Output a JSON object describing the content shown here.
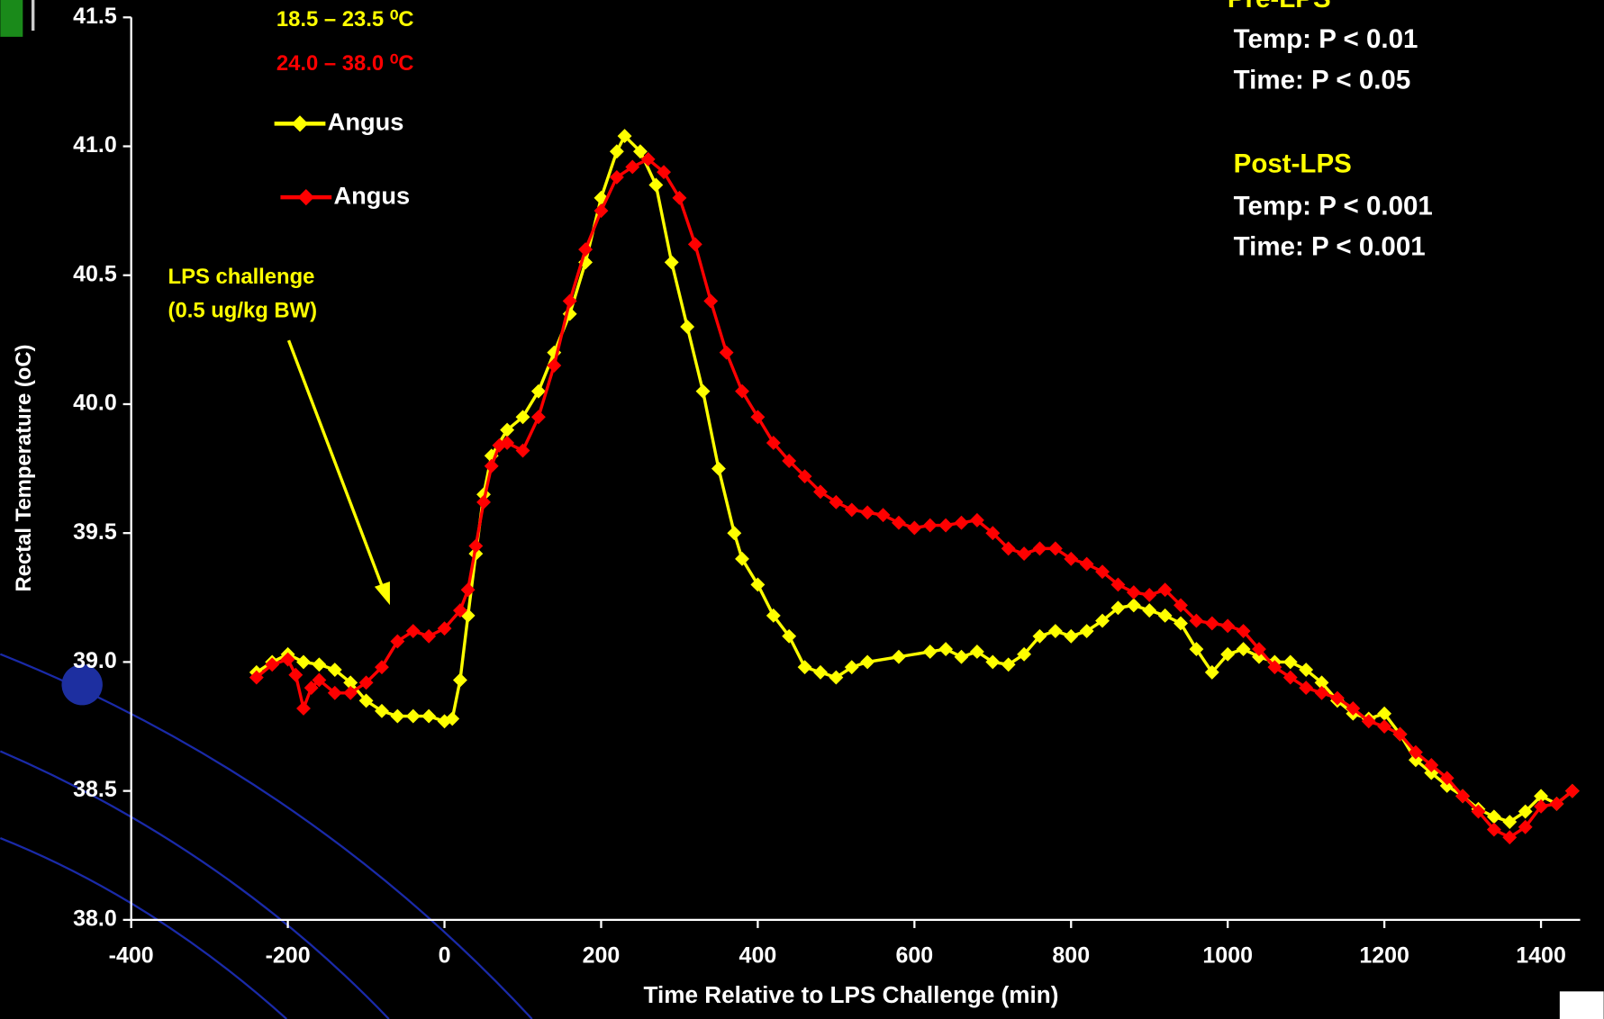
{
  "chart_data": {
    "type": "line",
    "x_label": "Time Relative to LPS Challenge (min)",
    "y_label": "Rectal Temperature (oC)",
    "xlim": [
      -400,
      1450
    ],
    "ylim": [
      38.0,
      41.5
    ],
    "xticks": [
      -400,
      -200,
      0,
      200,
      400,
      600,
      800,
      1000,
      1200,
      1400
    ],
    "yticks": [
      {
        "value": 38,
        "label": "38.0"
      },
      38.5,
      {
        "value": 39,
        "label": "39.0"
      },
      39.5,
      {
        "value": 40,
        "label": "40.0"
      },
      40.5,
      {
        "value": 41,
        "label": "41.0"
      },
      41.5
    ],
    "legend_ranges": [
      {
        "text": "18.5 – 23.5 ⁰C",
        "color": "#ffff00"
      },
      {
        "text": "24.0 – 38.0 ⁰C",
        "color": "#ff0000"
      }
    ],
    "annotations": {
      "arrow_label": [
        "LPS challenge",
        "(0.5 ug/kg BW)"
      ],
      "pre_title": "Pre-LPS",
      "pre_lines": [
        "Temp: P < 0.01",
        "Time: P < 0.05"
      ],
      "post_title": "Post-LPS",
      "post_lines": [
        "Temp: P < 0.001",
        "Time: P < 0.001"
      ]
    },
    "series": [
      {
        "name": "Angus",
        "color": "#ffff00",
        "x": [
          -240,
          -220,
          -200,
          -180,
          -160,
          -140,
          -120,
          -100,
          -80,
          -60,
          -40,
          -20,
          0,
          10,
          20,
          30,
          40,
          50,
          60,
          80,
          100,
          120,
          140,
          160,
          180,
          200,
          220,
          230,
          250,
          270,
          290,
          310,
          330,
          350,
          370,
          380,
          400,
          420,
          440,
          460,
          480,
          500,
          520,
          540,
          580,
          620,
          640,
          660,
          680,
          700,
          720,
          740,
          760,
          780,
          800,
          820,
          840,
          860,
          880,
          900,
          920,
          940,
          960,
          980,
          1000,
          1020,
          1040,
          1060,
          1080,
          1100,
          1120,
          1140,
          1160,
          1180,
          1200,
          1220,
          1240,
          1260,
          1280,
          1300,
          1320,
          1340,
          1360,
          1380,
          1400,
          1420,
          1440
        ],
        "values": [
          38.96,
          39.0,
          39.03,
          39.0,
          38.99,
          38.97,
          38.92,
          38.85,
          38.81,
          38.79,
          38.79,
          38.79,
          38.77,
          38.78,
          38.93,
          39.18,
          39.42,
          39.65,
          39.8,
          39.9,
          39.95,
          40.05,
          40.2,
          40.35,
          40.55,
          40.8,
          40.98,
          41.04,
          40.98,
          40.85,
          40.55,
          40.3,
          40.05,
          39.75,
          39.5,
          39.4,
          39.3,
          39.18,
          39.1,
          38.98,
          38.96,
          38.94,
          38.98,
          39.0,
          39.02,
          39.04,
          39.05,
          39.02,
          39.04,
          39.0,
          38.99,
          39.03,
          39.1,
          39.12,
          39.1,
          39.12,
          39.16,
          39.21,
          39.22,
          39.2,
          39.18,
          39.15,
          39.05,
          38.96,
          39.03,
          39.05,
          39.02,
          39.0,
          39.0,
          38.97,
          38.92,
          38.85,
          38.8,
          38.78,
          38.8,
          38.72,
          38.62,
          38.57,
          38.52,
          38.48,
          38.43,
          38.4,
          38.38,
          38.42,
          38.48,
          38.45,
          38.5
        ]
      },
      {
        "name": "Angus",
        "color": "#ff0000",
        "x": [
          -240,
          -220,
          -200,
          -190,
          -180,
          -170,
          -160,
          -140,
          -120,
          -100,
          -80,
          -60,
          -40,
          -20,
          0,
          20,
          30,
          40,
          50,
          60,
          70,
          80,
          100,
          120,
          140,
          160,
          180,
          200,
          220,
          240,
          260,
          280,
          300,
          320,
          340,
          360,
          380,
          400,
          420,
          440,
          460,
          480,
          500,
          520,
          540,
          560,
          580,
          600,
          620,
          640,
          660,
          680,
          700,
          720,
          740,
          760,
          780,
          800,
          820,
          840,
          860,
          880,
          900,
          920,
          940,
          960,
          980,
          1000,
          1020,
          1040,
          1060,
          1080,
          1100,
          1120,
          1140,
          1160,
          1180,
          1200,
          1220,
          1240,
          1260,
          1280,
          1300,
          1320,
          1340,
          1360,
          1380,
          1400,
          1420,
          1440
        ],
        "values": [
          38.94,
          38.99,
          39.01,
          38.95,
          38.82,
          38.9,
          38.93,
          38.88,
          38.88,
          38.92,
          38.98,
          39.08,
          39.12,
          39.1,
          39.13,
          39.2,
          39.28,
          39.45,
          39.62,
          39.76,
          39.84,
          39.85,
          39.82,
          39.95,
          40.15,
          40.4,
          40.6,
          40.75,
          40.88,
          40.92,
          40.95,
          40.9,
          40.8,
          40.62,
          40.4,
          40.2,
          40.05,
          39.95,
          39.85,
          39.78,
          39.72,
          39.66,
          39.62,
          39.59,
          39.58,
          39.57,
          39.54,
          39.52,
          39.53,
          39.53,
          39.54,
          39.55,
          39.5,
          39.44,
          39.42,
          39.44,
          39.44,
          39.4,
          39.38,
          39.35,
          39.3,
          39.27,
          39.26,
          39.28,
          39.22,
          39.16,
          39.15,
          39.14,
          39.12,
          39.05,
          38.98,
          38.94,
          38.9,
          38.88,
          38.86,
          38.82,
          38.77,
          38.75,
          38.72,
          38.65,
          38.6,
          38.55,
          38.48,
          38.42,
          38.35,
          38.32,
          38.36,
          38.44,
          38.45,
          38.5
        ]
      }
    ]
  }
}
